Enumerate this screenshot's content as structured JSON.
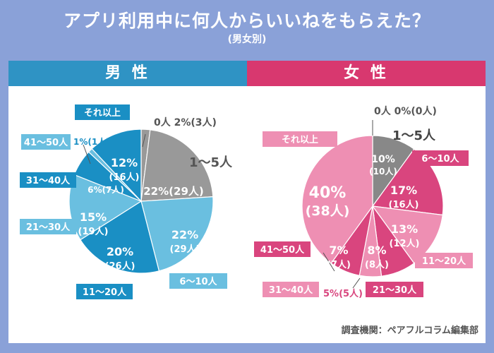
{
  "title": "アプリ利用中に何人からいいねをもらえた？",
  "subtitle": "(男女別)",
  "source": "調査機関：ペアフルコラム編集部",
  "chart_data": [
    {
      "type": "pie",
      "title": "男 性",
      "categories": [
        "0人",
        "1〜5人",
        "6〜10人",
        "11〜20人",
        "21〜30人",
        "31〜40人",
        "41〜50人",
        "それ以上"
      ],
      "values": [
        2,
        22,
        22,
        20,
        15,
        6,
        1,
        12
      ],
      "counts": [
        3,
        29,
        29,
        26,
        19,
        7,
        1,
        16
      ],
      "value_labels": [
        "2%",
        "22%",
        "22%",
        "20%",
        "15%",
        "6%",
        "1%",
        "12%"
      ],
      "count_labels": [
        "(3人)",
        "(29人)",
        "(29人)",
        "(26人)",
        "(19人)",
        "(7人)",
        "(1人)",
        "(16人)"
      ],
      "colors": [
        "#999999",
        "#999999",
        "#6abfe0",
        "#1a8fc4",
        "#6abfe0",
        "#1a8fc4",
        "#6abfe0",
        "#1a8fc4"
      ]
    },
    {
      "type": "pie",
      "title": "女 性",
      "categories": [
        "0人",
        "1〜5人",
        "6〜10人",
        "11〜20人",
        "21〜30人",
        "31〜40人",
        "41〜50人",
        "それ以上"
      ],
      "values": [
        0,
        10,
        17,
        13,
        8,
        5,
        7,
        40
      ],
      "counts": [
        0,
        10,
        16,
        12,
        8,
        5,
        7,
        38
      ],
      "value_labels": [
        "0%",
        "10%",
        "17%",
        "13%",
        "8%",
        "5%",
        "7%",
        "40%"
      ],
      "count_labels": [
        "(0人)",
        "(10人)",
        "(16人)",
        "(12人)",
        "(8人)",
        "(5人)",
        "(7人)",
        "(38人)"
      ],
      "colors": [
        "#888888",
        "#888888",
        "#d9457e",
        "#ee8fb3",
        "#d9457e",
        "#ee8fb3",
        "#d9457e",
        "#ee8fb3"
      ]
    }
  ]
}
